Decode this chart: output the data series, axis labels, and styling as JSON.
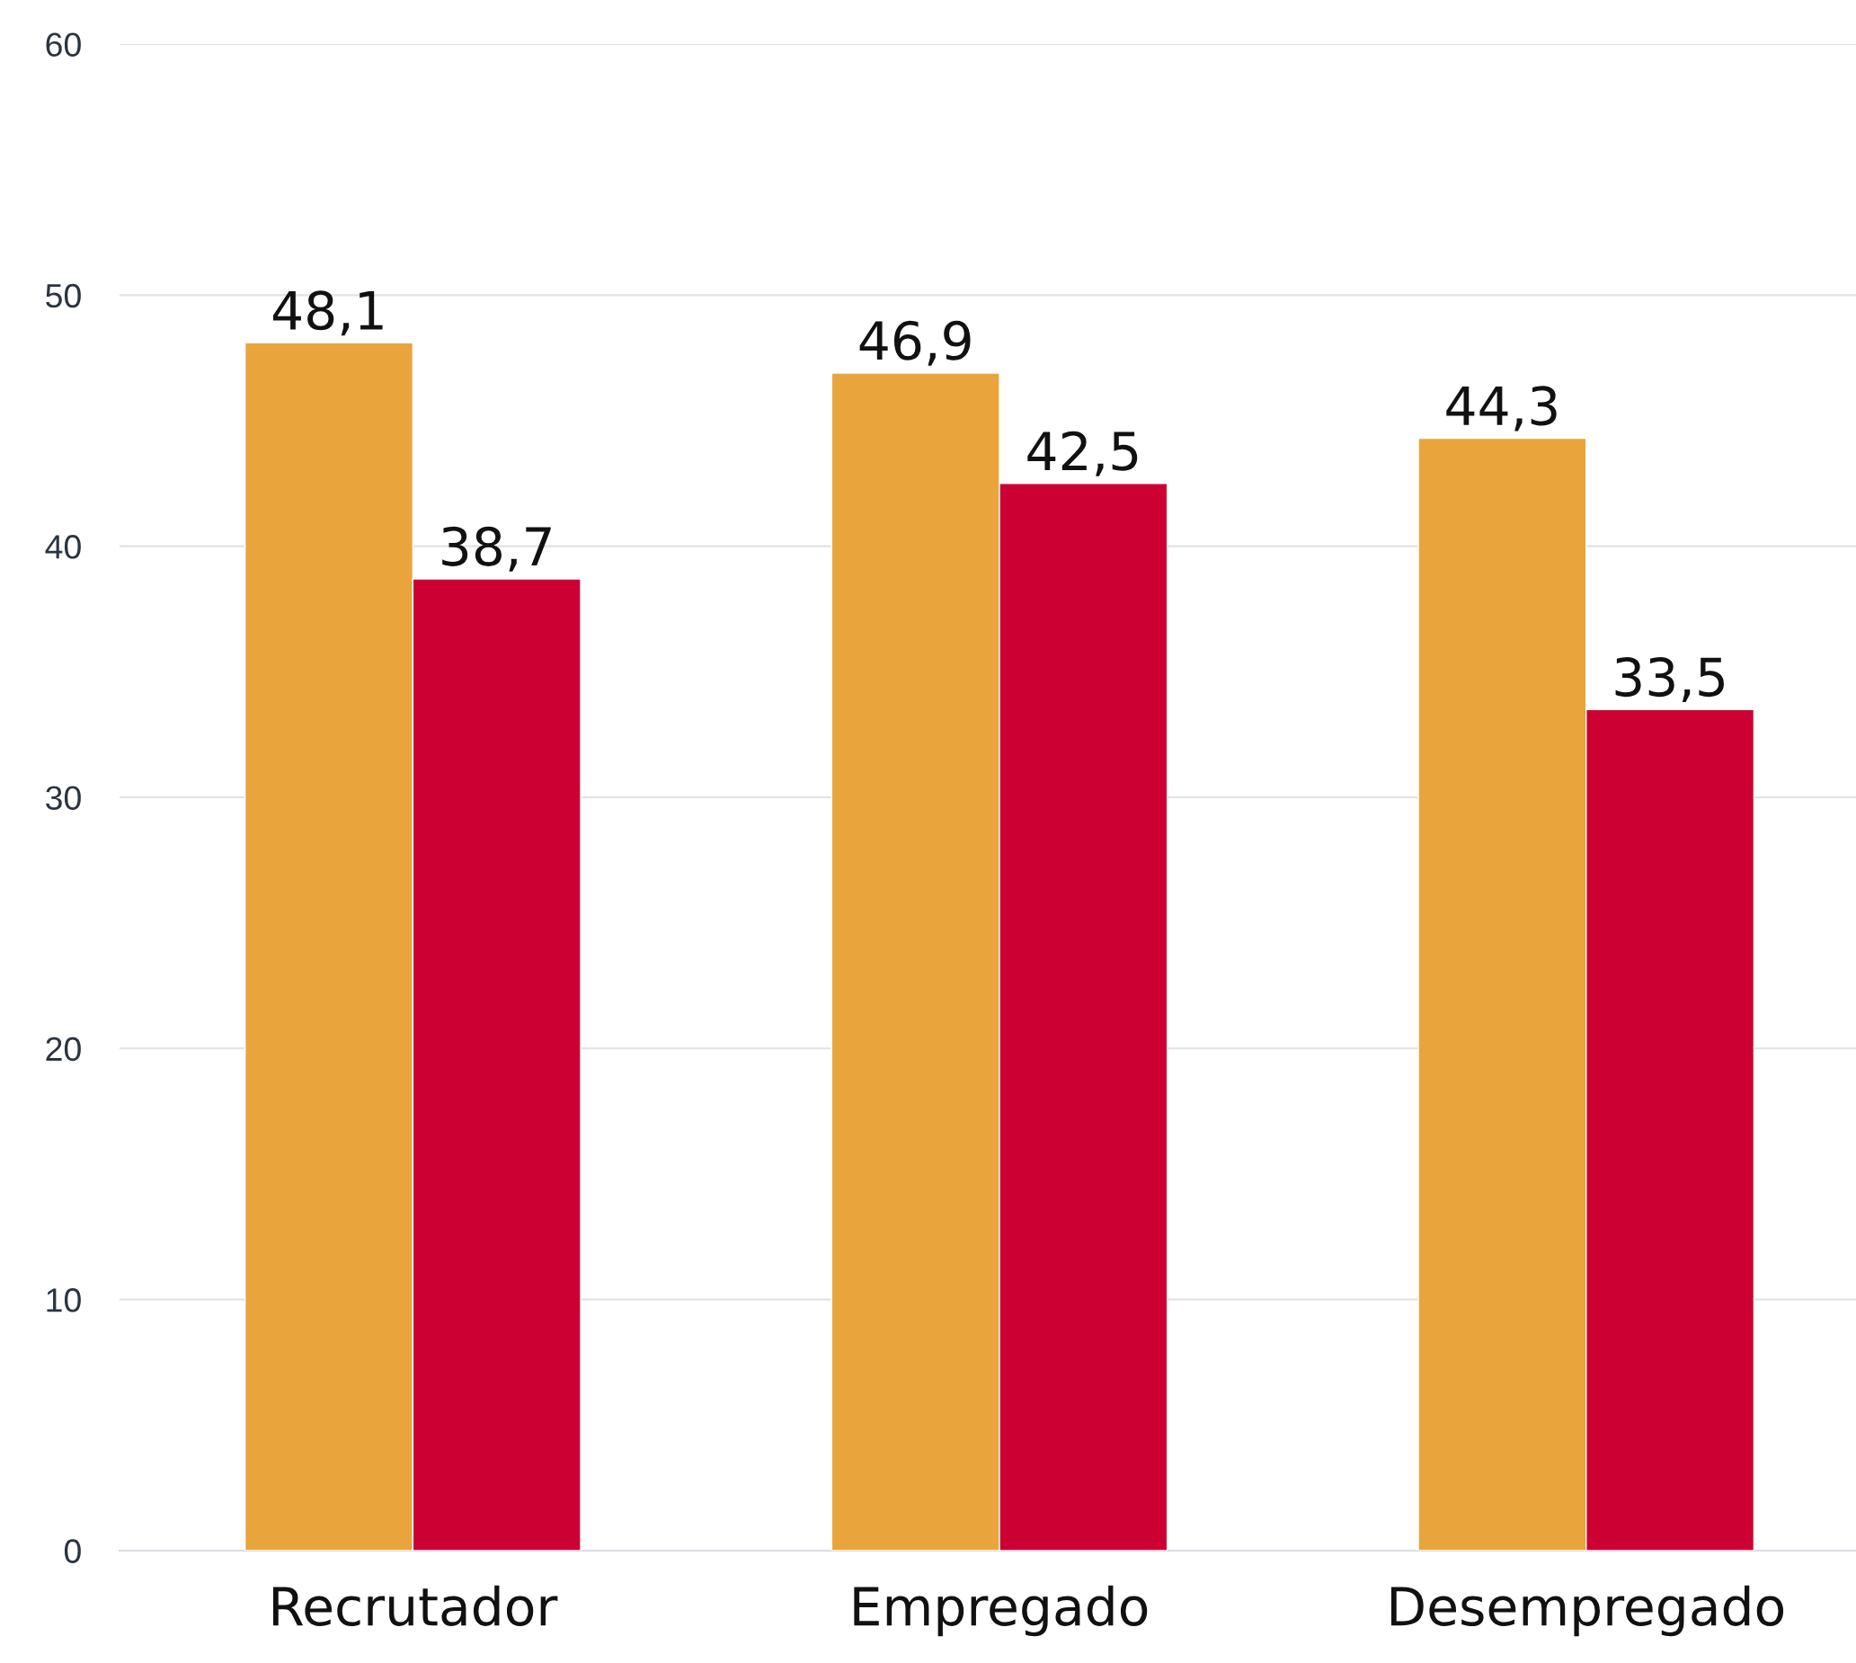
{
  "chart_data": {
    "type": "bar",
    "categories": [
      "Recrutador",
      "Empregado",
      "Desempregado"
    ],
    "series": [
      {
        "color": "#e9a43b",
        "values": [
          48.1,
          46.9,
          44.3
        ],
        "value_labels": [
          "48,1",
          "46,9",
          "44,3"
        ]
      },
      {
        "color": "#cc0033",
        "values": [
          38.7,
          42.5,
          33.5
        ],
        "value_labels": [
          "38,7",
          "42,5",
          "33,5"
        ]
      }
    ],
    "ylim": [
      0,
      60
    ],
    "yticks": [
      0,
      10,
      20,
      30,
      40,
      50,
      60
    ],
    "grid": "y",
    "legend": false
  }
}
